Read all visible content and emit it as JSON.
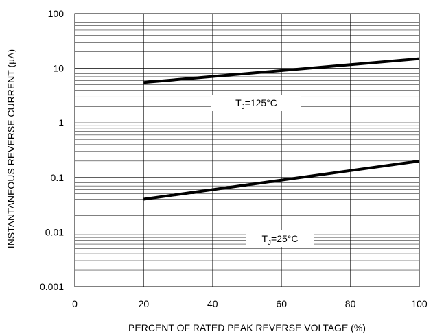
{
  "chart_data": {
    "type": "line",
    "title": "",
    "xlabel": "PERCENT OF RATED PEAK REVERSE VOLTAGE (%)",
    "ylabel": "INSTANTANEOUS REVERSE CURRENT (µA)",
    "xlim": [
      0,
      100
    ],
    "ylim": [
      0.001,
      100
    ],
    "yscale": "log",
    "grid": true,
    "x_ticks": [
      0,
      20,
      40,
      60,
      80,
      100
    ],
    "x_tick_labels": [
      "0",
      "20",
      "40",
      "60",
      "80",
      "100"
    ],
    "y_ticks": [
      0.001,
      0.01,
      0.1,
      1,
      10,
      100
    ],
    "y_tick_labels": [
      "0.001",
      "0.01",
      "0.1",
      "1",
      "10",
      "100"
    ],
    "series": [
      {
        "x": [
          20,
          100
        ],
        "y": [
          5.5,
          15
        ]
      },
      {
        "x": [
          20,
          100
        ],
        "y": [
          0.04,
          0.2
        ]
      }
    ],
    "annotations": [
      {
        "main": "T",
        "sub": "J",
        "rest": "=125°C"
      },
      {
        "main": "T",
        "sub": "J",
        "rest": "=25°C"
      }
    ],
    "line_color": "#000000",
    "grid_color": "#000000"
  }
}
